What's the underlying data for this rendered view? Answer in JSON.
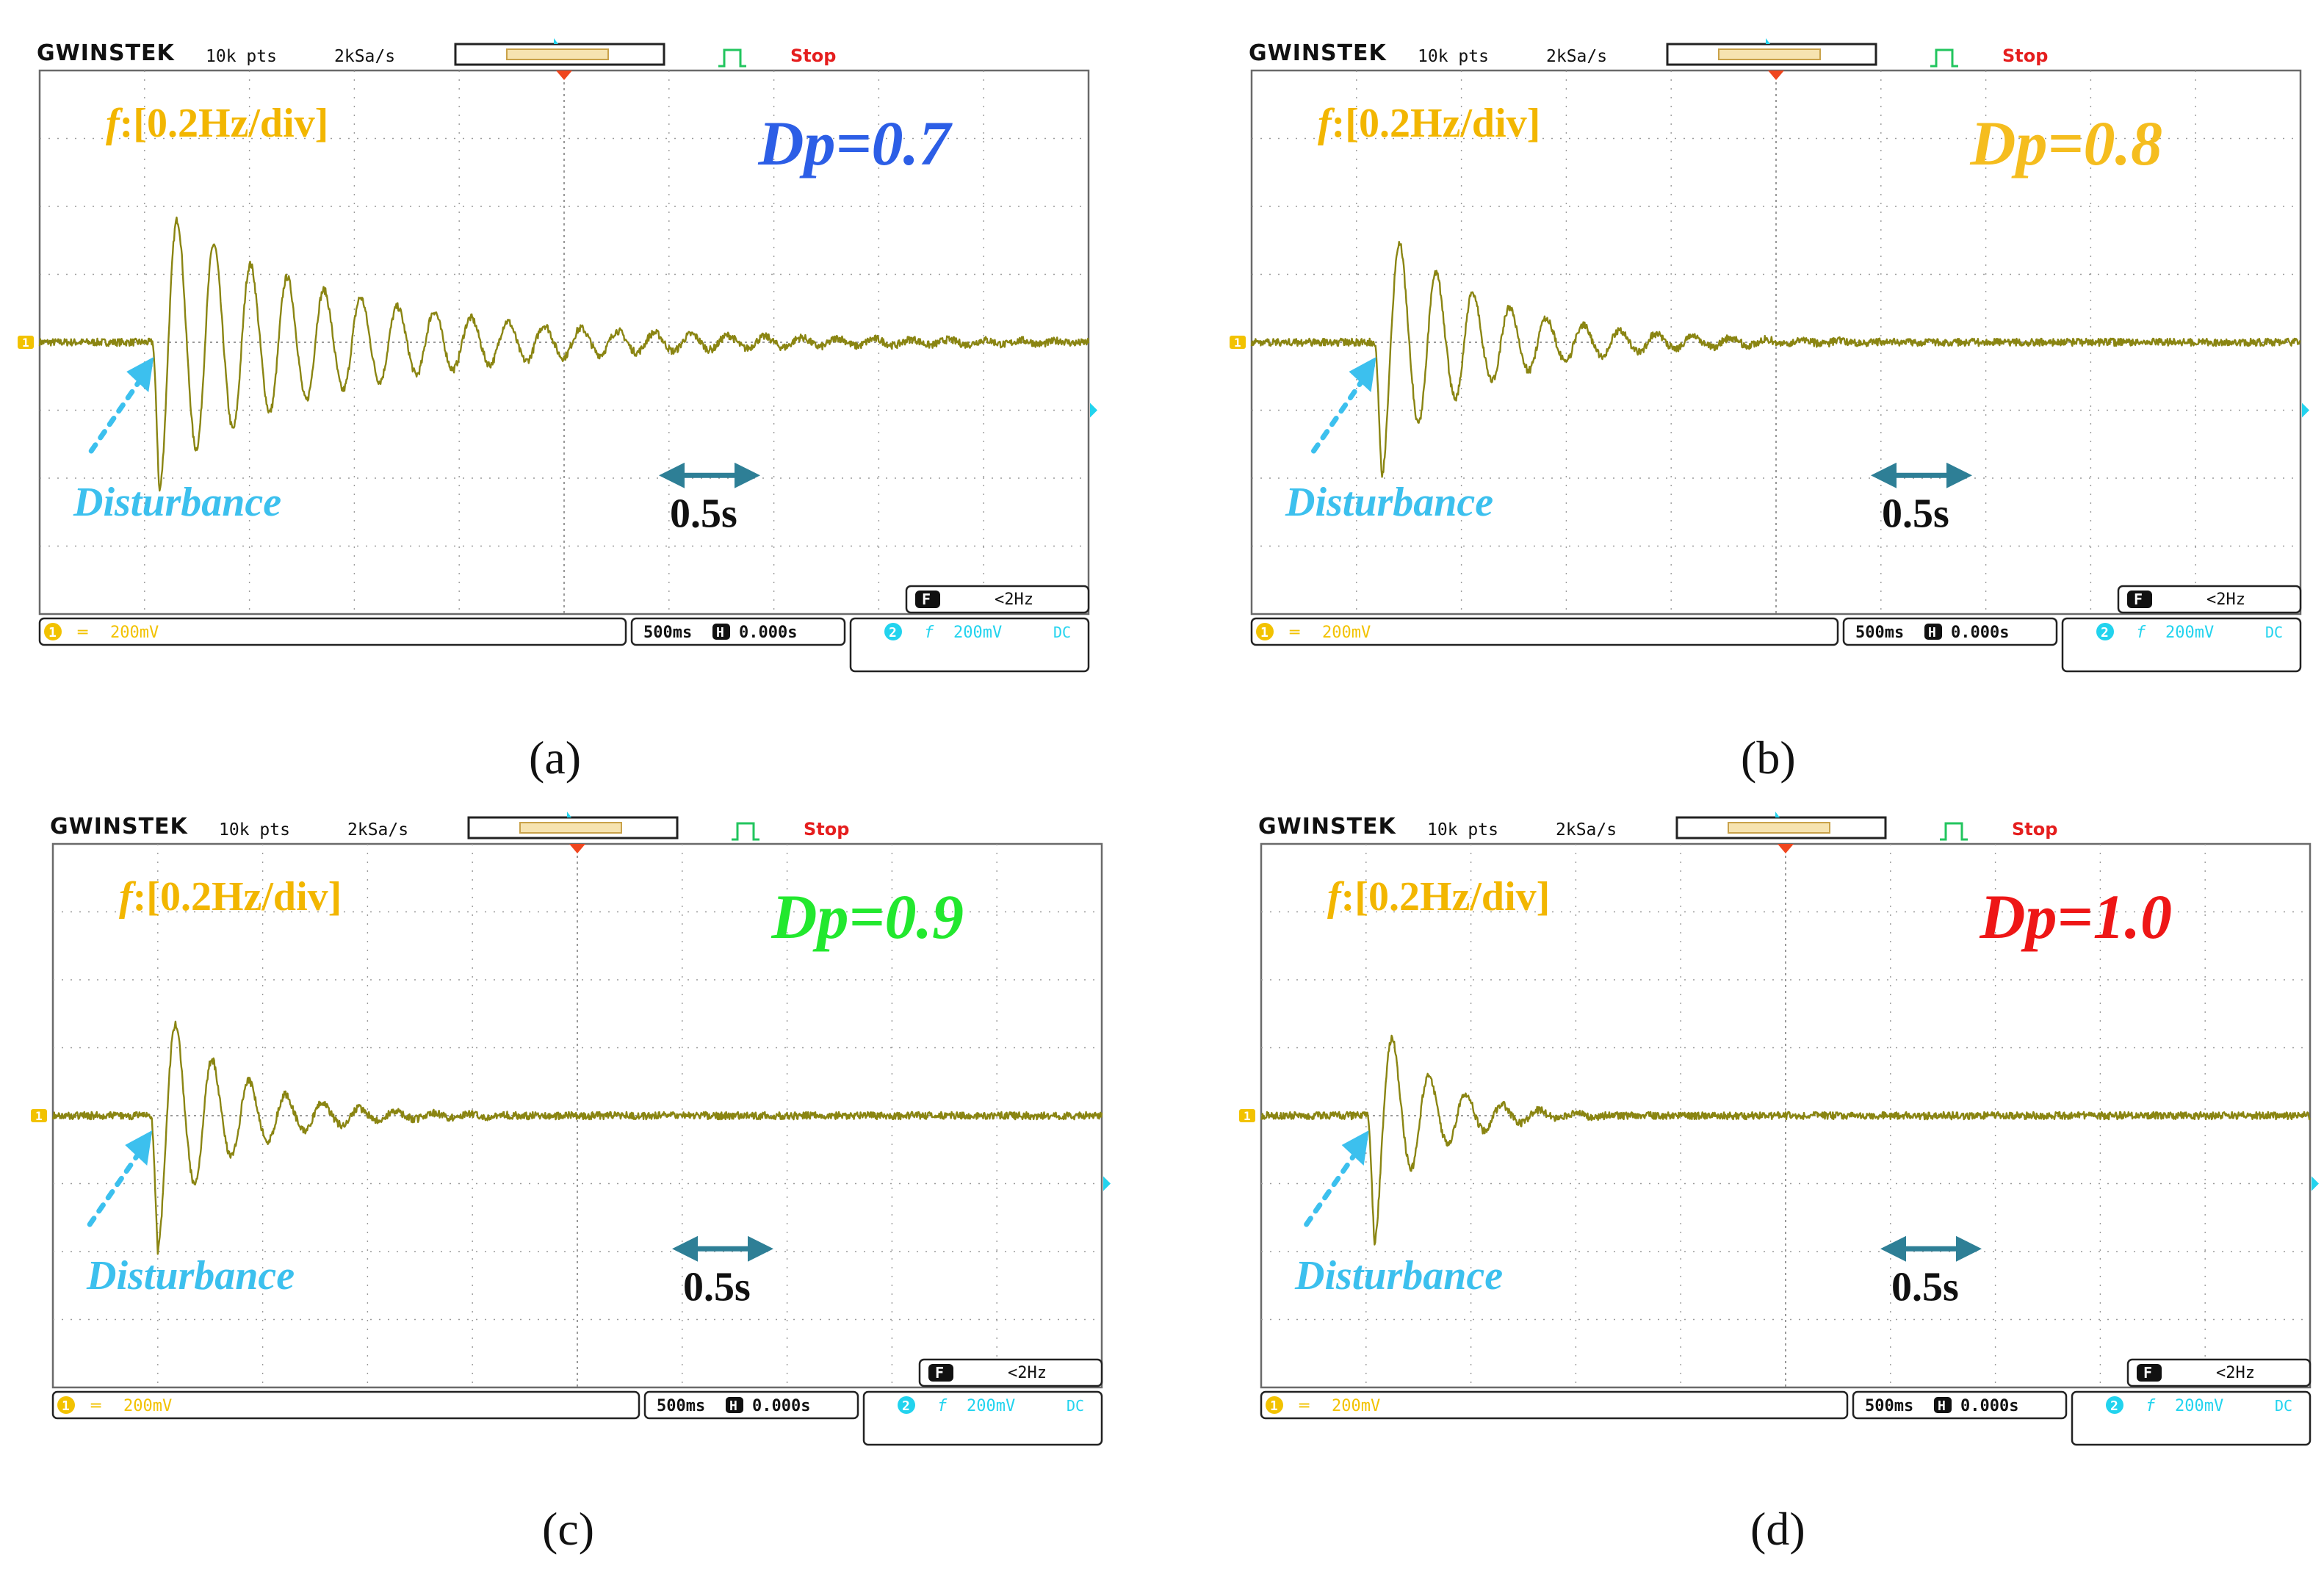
{
  "colors": {
    "trace": "#8a8512",
    "grid": "#9a9a9a",
    "frame": "#6a6a6a",
    "freq_label": "#f2b600",
    "disturbance": "#3cc0ee",
    "scale_arrow": "#2e7f96",
    "stop": "#e51e1e",
    "brand": "#111111",
    "ch1": "#f2c200",
    "ch2": "#22d3ee",
    "trigger": "#f0461e",
    "pulse_icon": "#22c55e"
  },
  "panels": [
    {
      "caption": "(a)",
      "brand": "GWINSTEK",
      "points": "10k pts",
      "sample_rate": "2kSa/s",
      "run_state": "Stop",
      "freq_label_prefix": "f",
      "freq_label_rest": ":[0.2Hz/div]",
      "dp_label": "Dp=0.7",
      "dp_color": "#2c5ee6",
      "disturbance_label": "Disturbance",
      "scale_label": "0.5s",
      "filter_badge": "F",
      "filter_value": "<2Hz",
      "ch1_marker": "1",
      "ch1_coupling": "═",
      "ch1_scale": "200mV",
      "timebase": "500ms",
      "horiz_badge": "H",
      "horiz_pos": "0.000s",
      "ch2_marker": "2",
      "ch2_symbol": "f",
      "ch2_scale": "200mV",
      "ch2_coupling": "DC",
      "icons": [
        "brand-logo",
        "pulse-icon",
        "trigger-marker-icon",
        "double-arrow-icon",
        "dashed-arrow-icon"
      ]
    },
    {
      "caption": "(b)",
      "brand": "GWINSTEK",
      "points": "10k pts",
      "sample_rate": "2kSa/s",
      "run_state": "Stop",
      "freq_label_prefix": "f",
      "freq_label_rest": ":[0.2Hz/div]",
      "dp_label": "Dp=0.8",
      "dp_color": "#f5bd1e",
      "disturbance_label": "Disturbance",
      "scale_label": "0.5s",
      "filter_badge": "F",
      "filter_value": "<2Hz",
      "ch1_marker": "1",
      "ch1_coupling": "═",
      "ch1_scale": "200mV",
      "timebase": "500ms",
      "horiz_badge": "H",
      "horiz_pos": "0.000s",
      "ch2_marker": "2",
      "ch2_symbol": "f",
      "ch2_scale": "200mV",
      "ch2_coupling": "DC"
    },
    {
      "caption": "(c)",
      "brand": "GWINSTEK",
      "points": "10k pts",
      "sample_rate": "2kSa/s",
      "run_state": "Stop",
      "freq_label_prefix": "f",
      "freq_label_rest": ":[0.2Hz/div]",
      "dp_label": "Dp=0.9",
      "dp_color": "#22e82e",
      "disturbance_label": "Disturbance",
      "scale_label": "0.5s",
      "filter_badge": "F",
      "filter_value": "<2Hz",
      "ch1_marker": "1",
      "ch1_coupling": "═",
      "ch1_scale": "200mV",
      "timebase": "500ms",
      "horiz_badge": "H",
      "horiz_pos": "0.000s",
      "ch2_marker": "2",
      "ch2_symbol": "f",
      "ch2_scale": "200mV",
      "ch2_coupling": "DC"
    },
    {
      "caption": "(d)",
      "brand": "GWINSTEK",
      "points": "10k pts",
      "sample_rate": "2kSa/s",
      "run_state": "Stop",
      "freq_label_prefix": "f",
      "freq_label_rest": ":[0.2Hz/div]",
      "dp_label": "Dp=1.0",
      "dp_color": "#ee1616",
      "disturbance_label": "Disturbance",
      "scale_label": "0.5s",
      "filter_badge": "F",
      "filter_value": "<2Hz",
      "ch1_marker": "1",
      "ch1_coupling": "═",
      "ch1_scale": "200mV",
      "timebase": "500ms",
      "horiz_badge": "H",
      "horiz_pos": "0.000s",
      "ch2_marker": "2",
      "ch2_symbol": "f",
      "ch2_scale": "200mV",
      "ch2_coupling": "DC"
    }
  ],
  "chart_data": [
    {
      "type": "line",
      "panel": "(a)",
      "xlabel": "",
      "ylabel": "",
      "x_unit": "s",
      "y_unit": "Hz",
      "xlim": [
        -2.5,
        2.5
      ],
      "ylim": [
        -0.8,
        0.8
      ],
      "grid": true,
      "disturbance_time_s": -1.96,
      "oscillation_period_s": 0.175,
      "series": [
        {
          "name": "Dp=0.7",
          "color": "#8a8512",
          "x": [
            -2.5,
            -1.96,
            -1.93,
            -1.88,
            -1.79,
            -1.71,
            -1.62,
            -1.54,
            -1.45,
            -1.36,
            -1.27,
            -1.19,
            -1.1,
            -1.01,
            -0.92,
            -0.84,
            -0.75,
            -0.66,
            -0.57,
            -0.49,
            -0.4,
            -0.31,
            -0.22,
            -0.14,
            -0.05,
            0.04,
            0.13,
            0.21,
            0.3,
            0.39,
            0.48,
            0.56,
            0.65,
            0.74,
            0.83,
            0.91,
            1.0,
            1.09,
            1.18,
            1.26,
            1.35,
            1.44,
            1.53,
            1.61,
            1.7,
            1.79,
            1.88,
            1.96,
            2.05,
            2.14,
            2.23,
            2.31,
            2.4,
            2.5
          ],
          "y": [
            0.0,
            0.0,
            -0.44,
            0.4,
            -0.3,
            0.33,
            -0.24,
            0.27,
            -0.19,
            0.22,
            -0.16,
            0.18,
            -0.13,
            0.15,
            -0.11,
            0.12,
            -0.09,
            0.1,
            -0.08,
            0.08,
            -0.065,
            0.067,
            -0.055,
            0.055,
            -0.045,
            0.045,
            -0.037,
            0.037,
            -0.03,
            0.03,
            -0.026,
            0.026,
            -0.022,
            0.022,
            -0.018,
            0.018,
            -0.015,
            0.015,
            -0.013,
            0.013,
            -0.011,
            0.011,
            -0.009,
            0.009,
            -0.008,
            0.008,
            -0.007,
            0.007,
            -0.006,
            0.006,
            -0.005,
            0.005,
            -0.004,
            0.0
          ]
        }
      ]
    },
    {
      "type": "line",
      "panel": "(b)",
      "xlabel": "",
      "ylabel": "",
      "x_unit": "s",
      "y_unit": "Hz",
      "xlim": [
        -2.5,
        2.5
      ],
      "ylim": [
        -0.8,
        0.8
      ],
      "grid": true,
      "disturbance_time_s": -1.91,
      "oscillation_period_s": 0.175,
      "series": [
        {
          "name": "Dp=0.8",
          "color": "#8a8512",
          "x": [
            -2.5,
            -1.91,
            -1.88,
            -1.83,
            -1.74,
            -1.66,
            -1.57,
            -1.48,
            -1.39,
            -1.31,
            -1.22,
            -1.13,
            -1.04,
            -0.96,
            -0.87,
            -0.78,
            -0.69,
            -0.61,
            -0.52,
            -0.43,
            -0.34,
            -0.26,
            -0.17,
            -0.08,
            0.01,
            0.09,
            0.18,
            0.27,
            0.36,
            0.44,
            0.53,
            2.5
          ],
          "y": [
            0.0,
            0.0,
            -0.4,
            0.33,
            -0.23,
            0.24,
            -0.16,
            0.17,
            -0.11,
            0.12,
            -0.08,
            0.085,
            -0.055,
            0.06,
            -0.04,
            0.042,
            -0.028,
            0.03,
            -0.02,
            0.021,
            -0.014,
            0.015,
            -0.01,
            0.01,
            -0.007,
            0.007,
            -0.005,
            0.005,
            -0.003,
            0.003,
            0.0,
            0.0
          ]
        }
      ]
    },
    {
      "type": "line",
      "panel": "(c)",
      "xlabel": "",
      "ylabel": "",
      "x_unit": "s",
      "y_unit": "Hz",
      "xlim": [
        -2.5,
        2.5
      ],
      "ylim": [
        -0.8,
        0.8
      ],
      "grid": true,
      "disturbance_time_s": -2.03,
      "oscillation_period_s": 0.175,
      "series": [
        {
          "name": "Dp=0.9",
          "color": "#8a8512",
          "x": [
            -2.5,
            -2.03,
            -2.0,
            -1.95,
            -1.86,
            -1.78,
            -1.69,
            -1.6,
            -1.51,
            -1.43,
            -1.34,
            -1.25,
            -1.16,
            -1.08,
            -0.99,
            -0.9,
            -0.81,
            -0.73,
            -0.64,
            -0.55,
            -0.46,
            -0.38,
            -0.29,
            -0.2,
            2.5
          ],
          "y": [
            0.0,
            0.0,
            -0.4,
            0.31,
            -0.2,
            0.2,
            -0.12,
            0.12,
            -0.075,
            0.075,
            -0.045,
            0.045,
            -0.027,
            0.027,
            -0.016,
            0.016,
            -0.01,
            0.01,
            -0.006,
            0.006,
            -0.004,
            0.004,
            0.0,
            0.0,
            0.0
          ]
        }
      ]
    },
    {
      "type": "line",
      "panel": "(d)",
      "xlabel": "",
      "ylabel": "",
      "x_unit": "s",
      "y_unit": "Hz",
      "xlim": [
        -2.5,
        2.5
      ],
      "ylim": [
        -0.8,
        0.8
      ],
      "grid": true,
      "disturbance_time_s": -1.99,
      "oscillation_period_s": 0.175,
      "series": [
        {
          "name": "Dp=1.0",
          "color": "#8a8512",
          "x": [
            -2.5,
            -1.99,
            -1.96,
            -1.91,
            -1.82,
            -1.74,
            -1.65,
            -1.56,
            -1.47,
            -1.39,
            -1.3,
            -1.21,
            -1.12,
            -1.04,
            -0.95,
            -0.86,
            -0.78,
            2.5
          ],
          "y": [
            0.0,
            0.0,
            -0.38,
            0.27,
            -0.16,
            0.15,
            -0.085,
            0.08,
            -0.045,
            0.042,
            -0.022,
            0.02,
            -0.01,
            0.009,
            -0.004,
            0.003,
            0.0,
            0.0
          ]
        }
      ]
    }
  ]
}
